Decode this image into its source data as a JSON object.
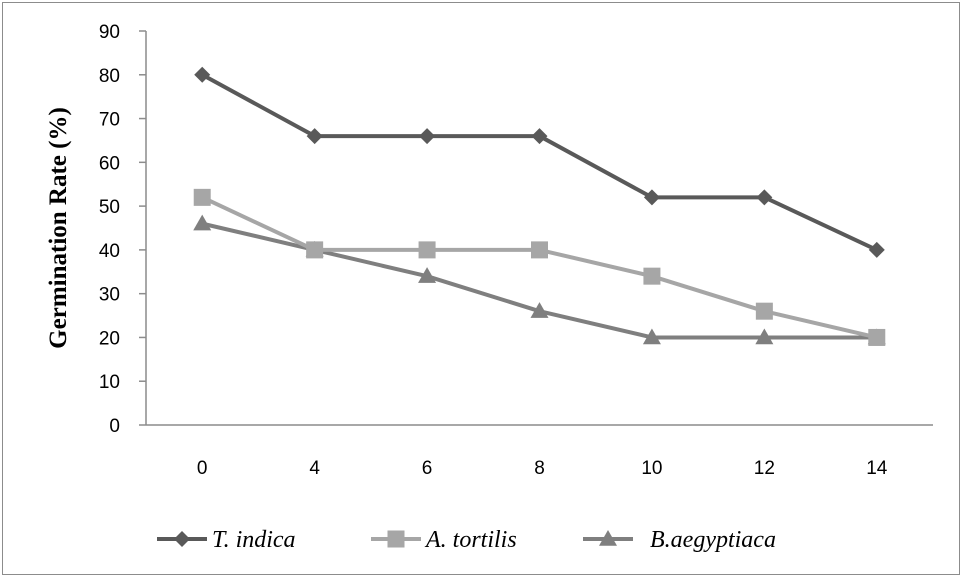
{
  "chart_data": {
    "type": "line",
    "title": "",
    "xlabel": "",
    "ylabel": "Germination Rate (%)",
    "x": [
      "0",
      "4",
      "6",
      "8",
      "10",
      "12",
      "14"
    ],
    "yticks": [
      "0",
      "10",
      "20",
      "30",
      "40",
      "50",
      "60",
      "70",
      "80",
      "90"
    ],
    "ylim": [
      0,
      90
    ],
    "grid": false,
    "legend": "bottom",
    "series": [
      {
        "name": "T. indica",
        "values": [
          80,
          66,
          66,
          66,
          52,
          52,
          40
        ],
        "color": "#595959",
        "marker": "diamond"
      },
      {
        "name": "A. tortilis",
        "values": [
          52,
          40,
          40,
          40,
          34,
          26,
          20
        ],
        "color": "#a6a6a6",
        "marker": "square"
      },
      {
        "name": "B.aegyptiaca",
        "values": [
          46,
          40,
          34,
          26,
          20,
          20,
          20
        ],
        "color": "#7f7f7f",
        "marker": "triangle"
      }
    ]
  }
}
